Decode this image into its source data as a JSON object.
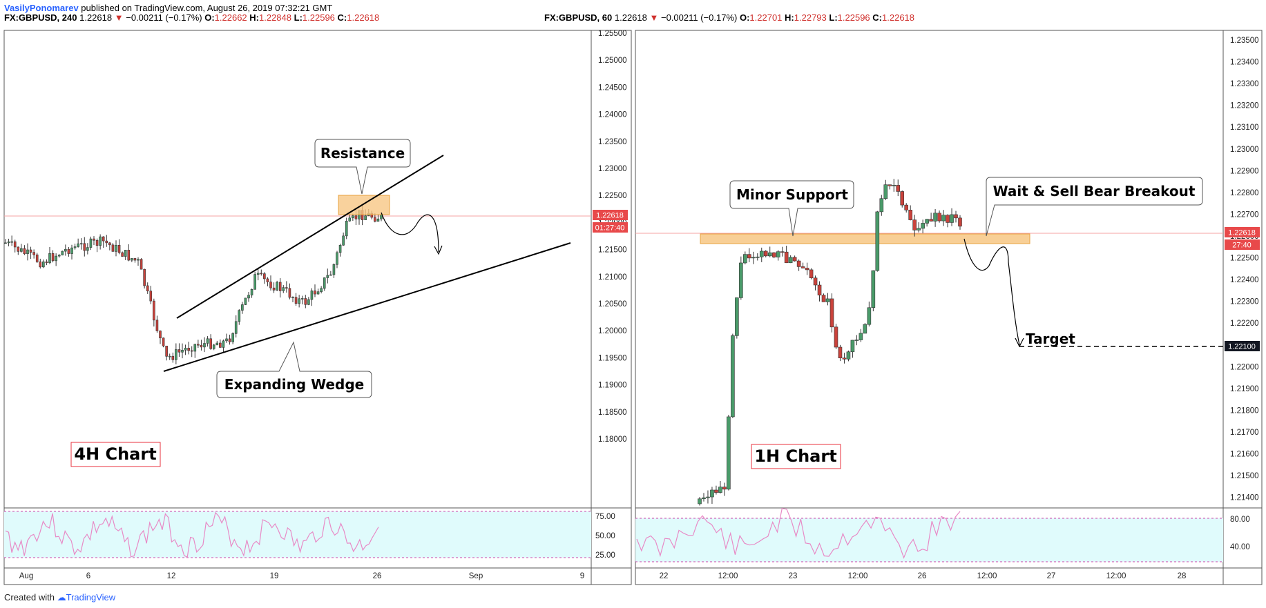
{
  "header": {
    "author": "VasilyPonomarev",
    "published": "published on TradingView.com, August 26, 2019 07:32:21 GMT"
  },
  "footer": {
    "created": "Created with",
    "brand": "TradingView",
    "logo_icon": "tradingview-logo-icon"
  },
  "charts": [
    {
      "legend": {
        "symbol": "FX:GBPUSD, 240",
        "last": "1.22618",
        "change": "−0.00211 (−0.17%)",
        "o_label": "O:",
        "o": "1.22662",
        "h_label": "H:",
        "h": "1.22848",
        "l_label": "L:",
        "l": "1.22596",
        "c_label": "C:",
        "c": "1.22618"
      },
      "ylabels": [
        "1.25500",
        "1.25000",
        "1.24500",
        "1.24000",
        "1.23500",
        "1.23000",
        "1.22500",
        "1.22000",
        "1.21500",
        "1.21000",
        "1.20500",
        "1.20000",
        "1.19500",
        "1.19000",
        "1.18500",
        "1.18000"
      ],
      "xlabels": [
        "Aug",
        "6",
        "12",
        "19",
        "26",
        "Sep",
        "9"
      ],
      "rsi_labels": [
        "75.00",
        "50.00",
        "25.00"
      ],
      "price_tag": "1.22618",
      "timer_tag": "01:27:40",
      "callouts": {
        "resistance": "Resistance",
        "wedge": "Expanding Wedge",
        "label": "4H Chart"
      }
    },
    {
      "legend": {
        "symbol": "FX:GBPUSD, 60",
        "last": "1.22618",
        "change": "−0.00211 (−0.17%)",
        "o_label": "O:",
        "o": "1.22701",
        "h_label": "H:",
        "h": "1.22793",
        "l_label": "L:",
        "l": "1.22596",
        "c_label": "C:",
        "c": "1.22618"
      },
      "ylabels": [
        "1.23500",
        "1.23400",
        "1.23300",
        "1.23200",
        "1.23100",
        "1.23000",
        "1.22900",
        "1.22800",
        "1.22700",
        "1.22600",
        "1.22500",
        "1.22400",
        "1.22300",
        "1.22200",
        "1.22100",
        "1.22000",
        "1.21900",
        "1.21800",
        "1.21700",
        "1.21600",
        "1.21500",
        "1.21400"
      ],
      "xlabels": [
        "22",
        "12:00",
        "23",
        "12:00",
        "26",
        "12:00",
        "27",
        "12:00",
        "28"
      ],
      "rsi_labels": [
        "80.00",
        "40.00"
      ],
      "price_tag": "1.22618",
      "timer_tag": "27:40",
      "target_tag": "1.22100",
      "callouts": {
        "support": "Minor Support",
        "sell": "Wait & Sell Bear Breakout",
        "target": "Target",
        "label": "1H Chart"
      }
    }
  ],
  "chart_data": [
    {
      "type": "candlestick",
      "title": "FX:GBPUSD, 240",
      "ylim": [
        1.18,
        1.255
      ],
      "annotations": [
        "Resistance",
        "Expanding Wedge",
        "4H Chart"
      ],
      "last_close": 1.22618
    },
    {
      "type": "candlestick",
      "title": "FX:GBPUSD, 60",
      "ylim": [
        1.2135,
        1.2355
      ],
      "annotations": [
        "Minor Support",
        "Wait & Sell Bear Breakout",
        "Target",
        "1H Chart"
      ],
      "target": 1.221,
      "last_close": 1.22618
    }
  ],
  "colors": {
    "up": "#53b987",
    "down": "#eb4d5c",
    "upfill": "#4a9b6a",
    "downfill": "#c9423b",
    "zone": "#f7c784",
    "rsi_bg": "#e0fbfc",
    "rsi_line": "#e88ac6",
    "tag_red": "#e8494a",
    "tag_dark": "#131722",
    "label_border": "#e8323c"
  }
}
